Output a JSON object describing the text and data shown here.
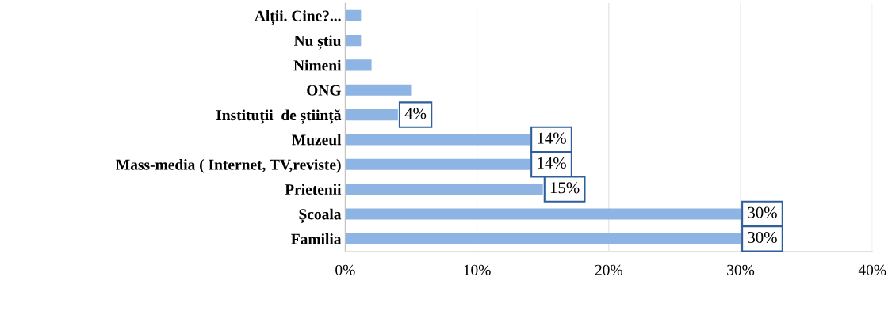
{
  "chart_data": {
    "type": "bar",
    "orientation": "horizontal",
    "categories": [
      "Alții. Cine?...",
      "Nu știu",
      "Nimeni",
      "ONG",
      "Instituții  de știință",
      "Muzeul",
      "Mass-media ( Internet, TV,reviste)",
      "Prietenii",
      "Școala",
      "Familia"
    ],
    "values": [
      1.2,
      1.2,
      2,
      5,
      4,
      14,
      14,
      15,
      30,
      30
    ],
    "value_labels": [
      null,
      null,
      null,
      null,
      "4%",
      "14%",
      "14%",
      "15%",
      "30%",
      "30%"
    ],
    "color": "#8db4e2",
    "xlim": [
      0,
      40
    ],
    "xticks": [
      {
        "value": 0,
        "label": "0%"
      },
      {
        "value": 10,
        "label": "10%"
      },
      {
        "value": 20,
        "label": "20%"
      },
      {
        "value": 30,
        "label": "30%"
      },
      {
        "value": 40,
        "label": "40%"
      }
    ],
    "grid": "x"
  }
}
